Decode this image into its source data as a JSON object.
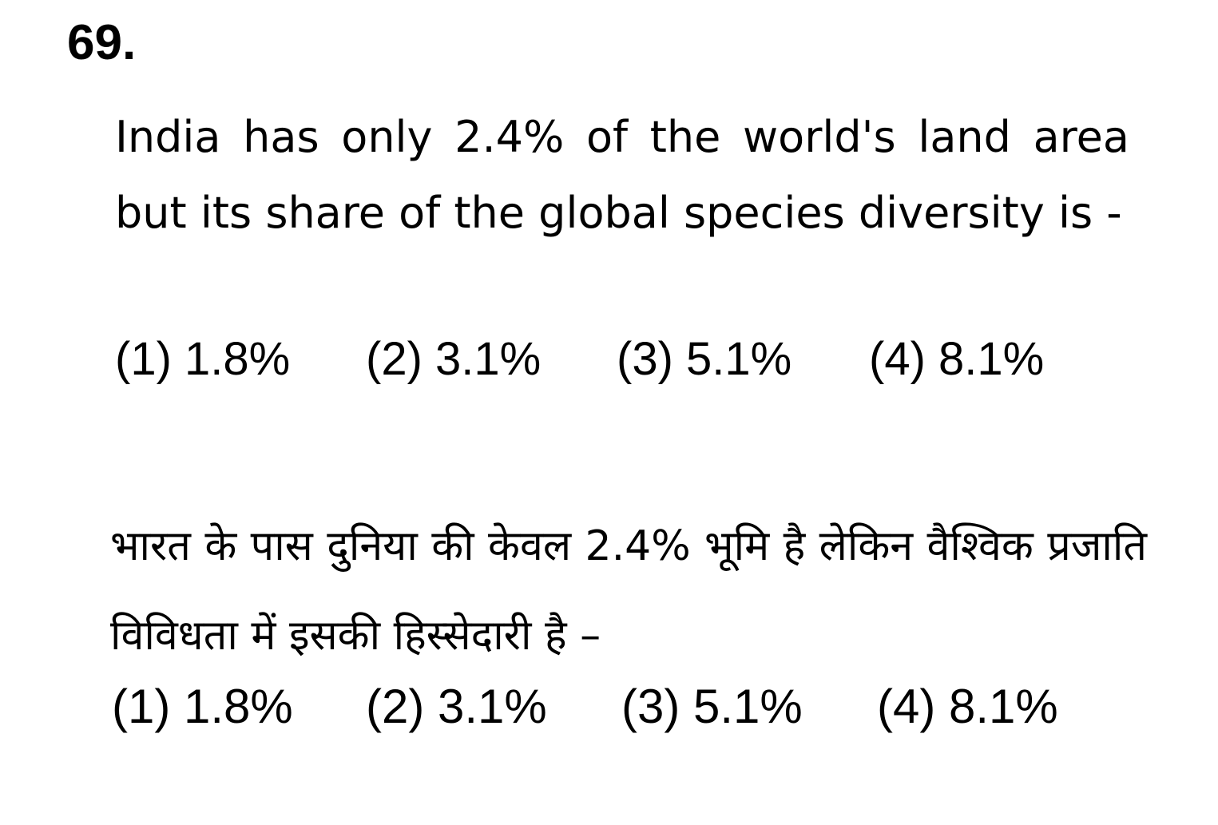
{
  "question": {
    "number": "69.",
    "english": {
      "stem": "India has only 2.4% of the world's land area but its share of the global species diversity is -",
      "options": [
        "(1) 1.8%",
        "(2) 3.1%",
        "(3) 5.1%",
        "(4) 8.1%"
      ]
    },
    "hindi": {
      "stem": "भारत के पास दुनिया की केवल 2.4% भूमि है लेकिन वैश्विक प्रजाति विविधता में इसकी हिस्सेदारी है –",
      "options": [
        "(1) 1.8%",
        "(2) 3.1%",
        "(3) 5.1%",
        "(4) 8.1%"
      ]
    }
  }
}
